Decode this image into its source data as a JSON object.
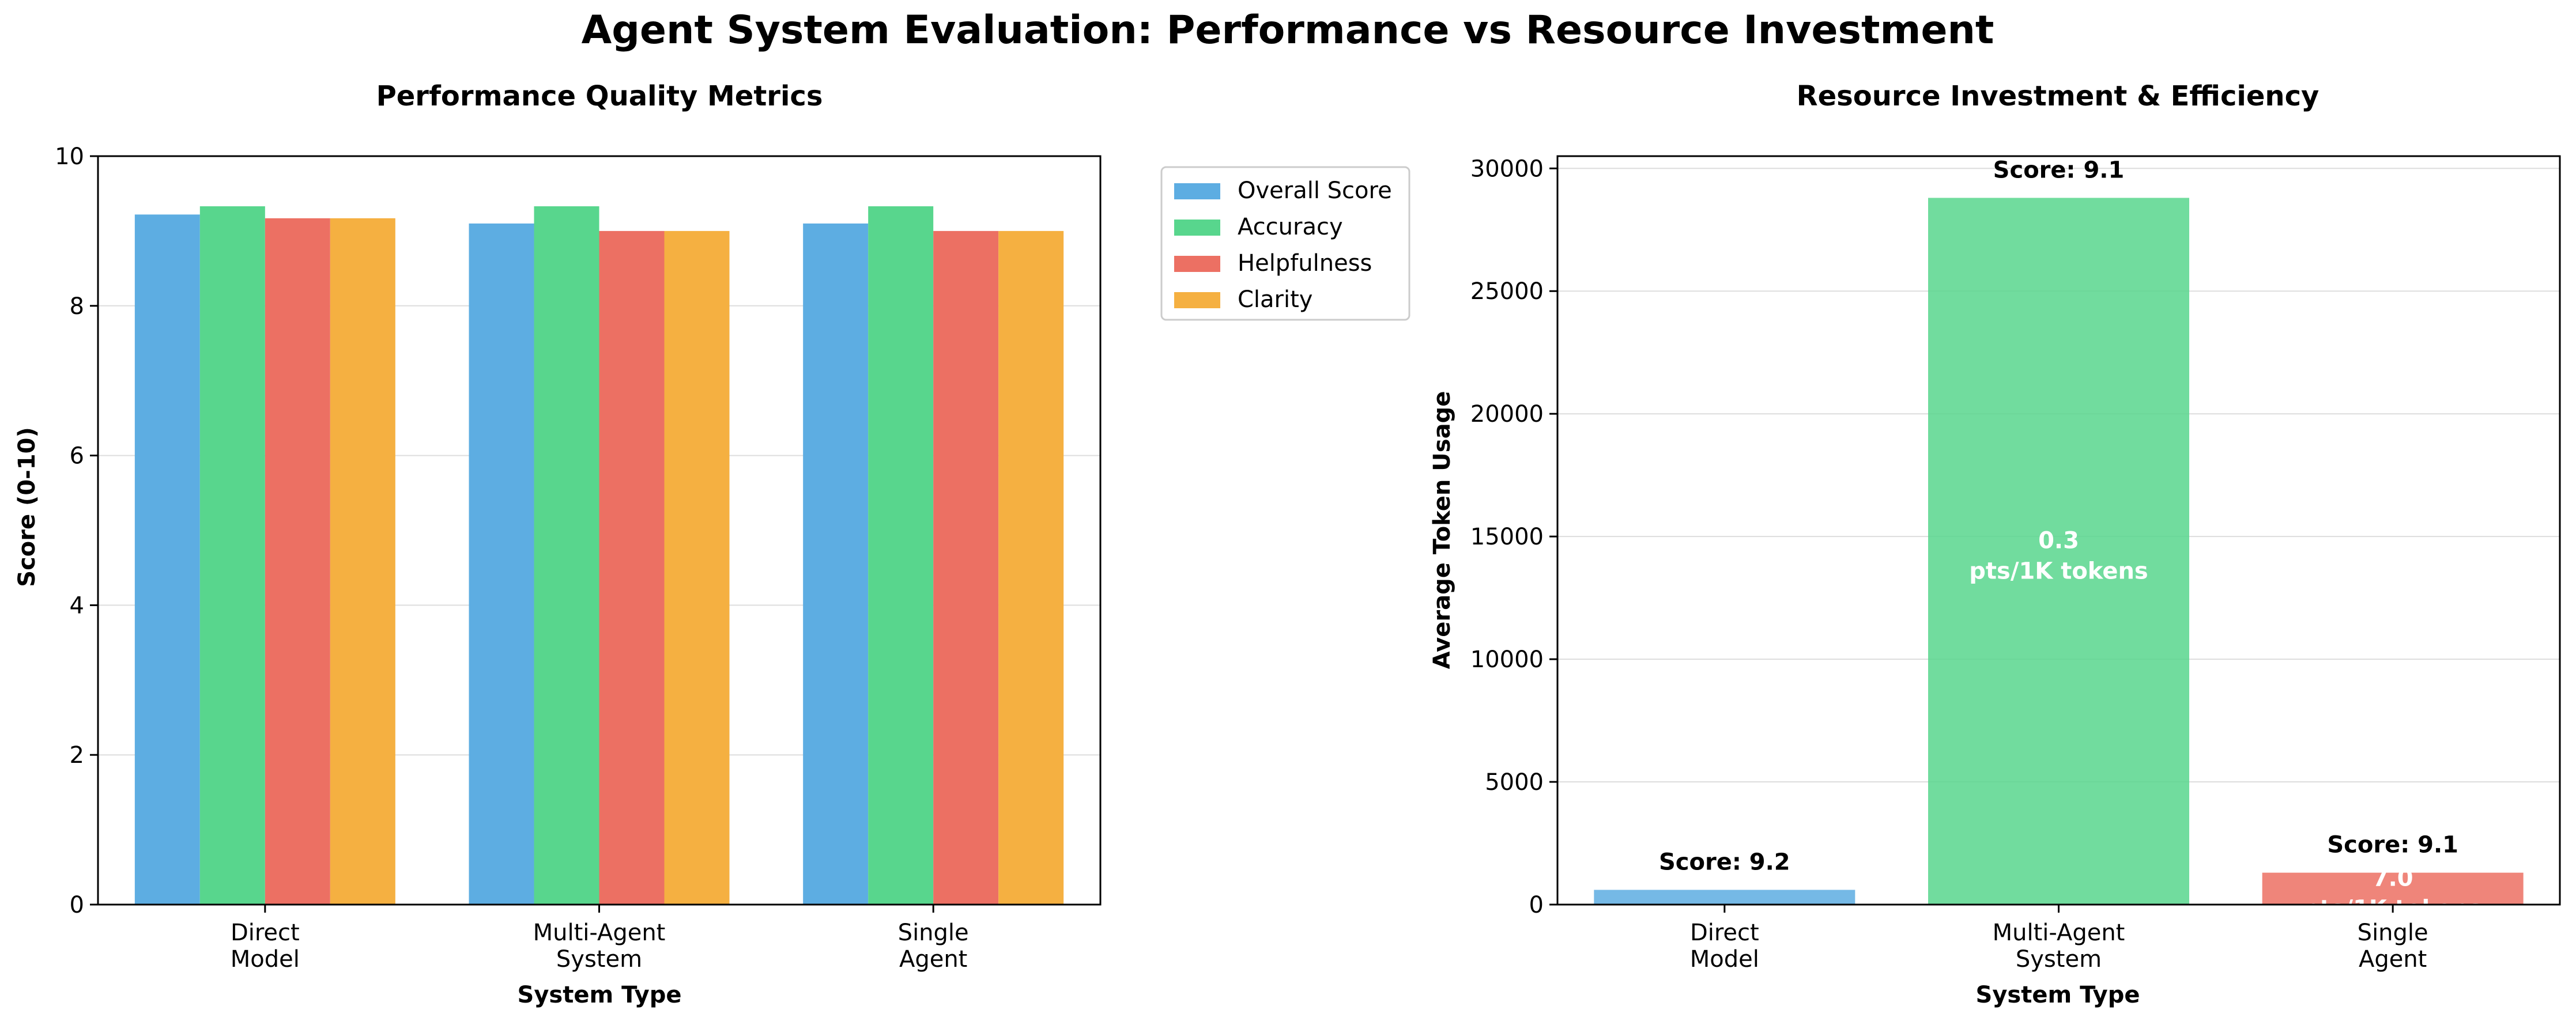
{
  "title": "Agent System Evaluation: Performance vs Resource Investment",
  "chart_data": [
    {
      "type": "bar",
      "title": "Performance Quality Metrics",
      "xlabel": "System Type",
      "ylabel": "Score (0-10)",
      "categories": [
        [
          "Direct",
          "Model"
        ],
        [
          "Multi-Agent",
          "System"
        ],
        [
          "Single",
          "Agent"
        ]
      ],
      "ylim": [
        0,
        10
      ],
      "yticks": [
        0,
        2,
        4,
        6,
        8,
        10
      ],
      "grid": true,
      "legend": "outside-top-right",
      "series": [
        {
          "name": "Overall Score",
          "color": "#5dade2",
          "values": [
            9.22,
            9.1,
            9.1
          ]
        },
        {
          "name": "Accuracy",
          "color": "#58d68d",
          "values": [
            9.33,
            9.33,
            9.33
          ]
        },
        {
          "name": "Helpfulness",
          "color": "#ec7063",
          "values": [
            9.17,
            9.0,
            9.0
          ]
        },
        {
          "name": "Clarity",
          "color": "#f5b041",
          "values": [
            9.17,
            9.0,
            9.0
          ]
        }
      ]
    },
    {
      "type": "bar",
      "title": "Resource Investment & Efficiency",
      "xlabel": "System Type",
      "ylabel": "Average Token Usage",
      "categories": [
        [
          "Direct",
          "Model"
        ],
        [
          "Multi-Agent",
          "System"
        ],
        [
          "Single",
          "Agent"
        ]
      ],
      "ylim": [
        0,
        30500
      ],
      "yticks": [
        0,
        5000,
        10000,
        15000,
        20000,
        25000,
        30000
      ],
      "grid": true,
      "values": [
        600,
        28800,
        1300
      ],
      "colors": [
        "#5dade2",
        "#58d68d",
        "#ec7063"
      ],
      "score_labels": [
        "Score: 9.2",
        "Score: 9.1",
        "Score: 9.1"
      ],
      "efficiency_values": [
        "",
        "0.3",
        "7.0"
      ],
      "efficiency_unit": "pts/1K tokens"
    }
  ]
}
